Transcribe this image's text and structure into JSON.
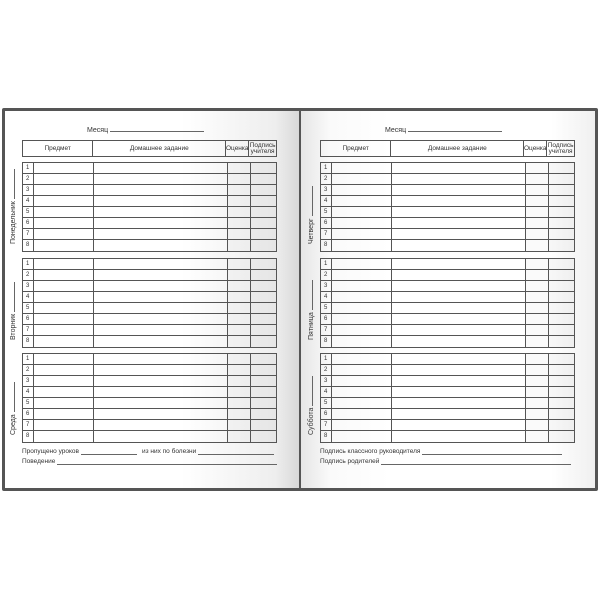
{
  "header": {
    "month_label": "Месяц",
    "columns": {
      "subject": "Предмет",
      "homework": "Домашнее задание",
      "grade": "Оценка",
      "signature": "Подпись учителя"
    }
  },
  "row_numbers": [
    "1",
    "2",
    "3",
    "4",
    "5",
    "6",
    "7",
    "8"
  ],
  "left_page": {
    "days": [
      "Понедельник",
      "Вторник",
      "Среда"
    ],
    "footer": {
      "missed": "Пропущено уроков",
      "sick": "из них по болезни",
      "behavior": "Поведение"
    }
  },
  "right_page": {
    "days": [
      "Четверг",
      "Пятница",
      "Суббота"
    ],
    "footer": {
      "teacher_sig": "Подпись классного руководителя",
      "parent_sig": "Подпись родителей"
    }
  }
}
